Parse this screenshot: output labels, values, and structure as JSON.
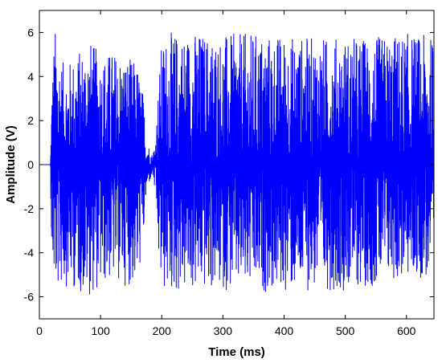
{
  "chart_data": {
    "type": "line",
    "xlabel": "Time (ms)",
    "ylabel": "Amplitude (V)",
    "xlim": [
      0,
      645
    ],
    "ylim": [
      -7,
      7
    ],
    "xticks": [
      0,
      100,
      200,
      300,
      400,
      500,
      600
    ],
    "yticks": [
      -6,
      -4,
      -2,
      0,
      2,
      4,
      6
    ],
    "xtick_labels": [
      "0",
      "100",
      "200",
      "300",
      "400",
      "500",
      "600"
    ],
    "ytick_labels": [
      "-6",
      "-4",
      "-2",
      "0",
      "2",
      "4",
      "6"
    ],
    "grid": false,
    "box": true,
    "series": [
      {
        "color": "#0000ff",
        "description": "dense oscillating signal",
        "envelope_x": [
          0,
          18,
          20,
          25,
          40,
          60,
          80,
          100,
          120,
          140,
          160,
          170,
          175,
          180,
          185,
          190,
          195,
          200,
          210,
          250,
          300,
          350,
          400,
          450,
          500,
          550,
          600,
          645
        ],
        "envelope_upper": [
          0,
          0,
          3.5,
          6.3,
          4.5,
          5.0,
          5.8,
          5.0,
          5.2,
          5.0,
          4.6,
          3.2,
          1.2,
          0.8,
          0.4,
          1.4,
          3.8,
          5.6,
          6.0,
          6.1,
          5.9,
          6.0,
          5.9,
          5.8,
          5.8,
          5.8,
          6.0,
          5.8
        ],
        "envelope_lower": [
          0,
          0,
          -4.4,
          -5.9,
          -5.5,
          -5.7,
          -6.0,
          -5.6,
          -5.2,
          -5.5,
          -5.5,
          -3.6,
          -1.3,
          -0.8,
          -0.5,
          -1.5,
          -4.5,
          -5.9,
          -5.9,
          -5.8,
          -5.7,
          -5.8,
          -5.8,
          -5.7,
          -5.7,
          -5.5,
          -5.2,
          -5.2
        ]
      }
    ]
  }
}
